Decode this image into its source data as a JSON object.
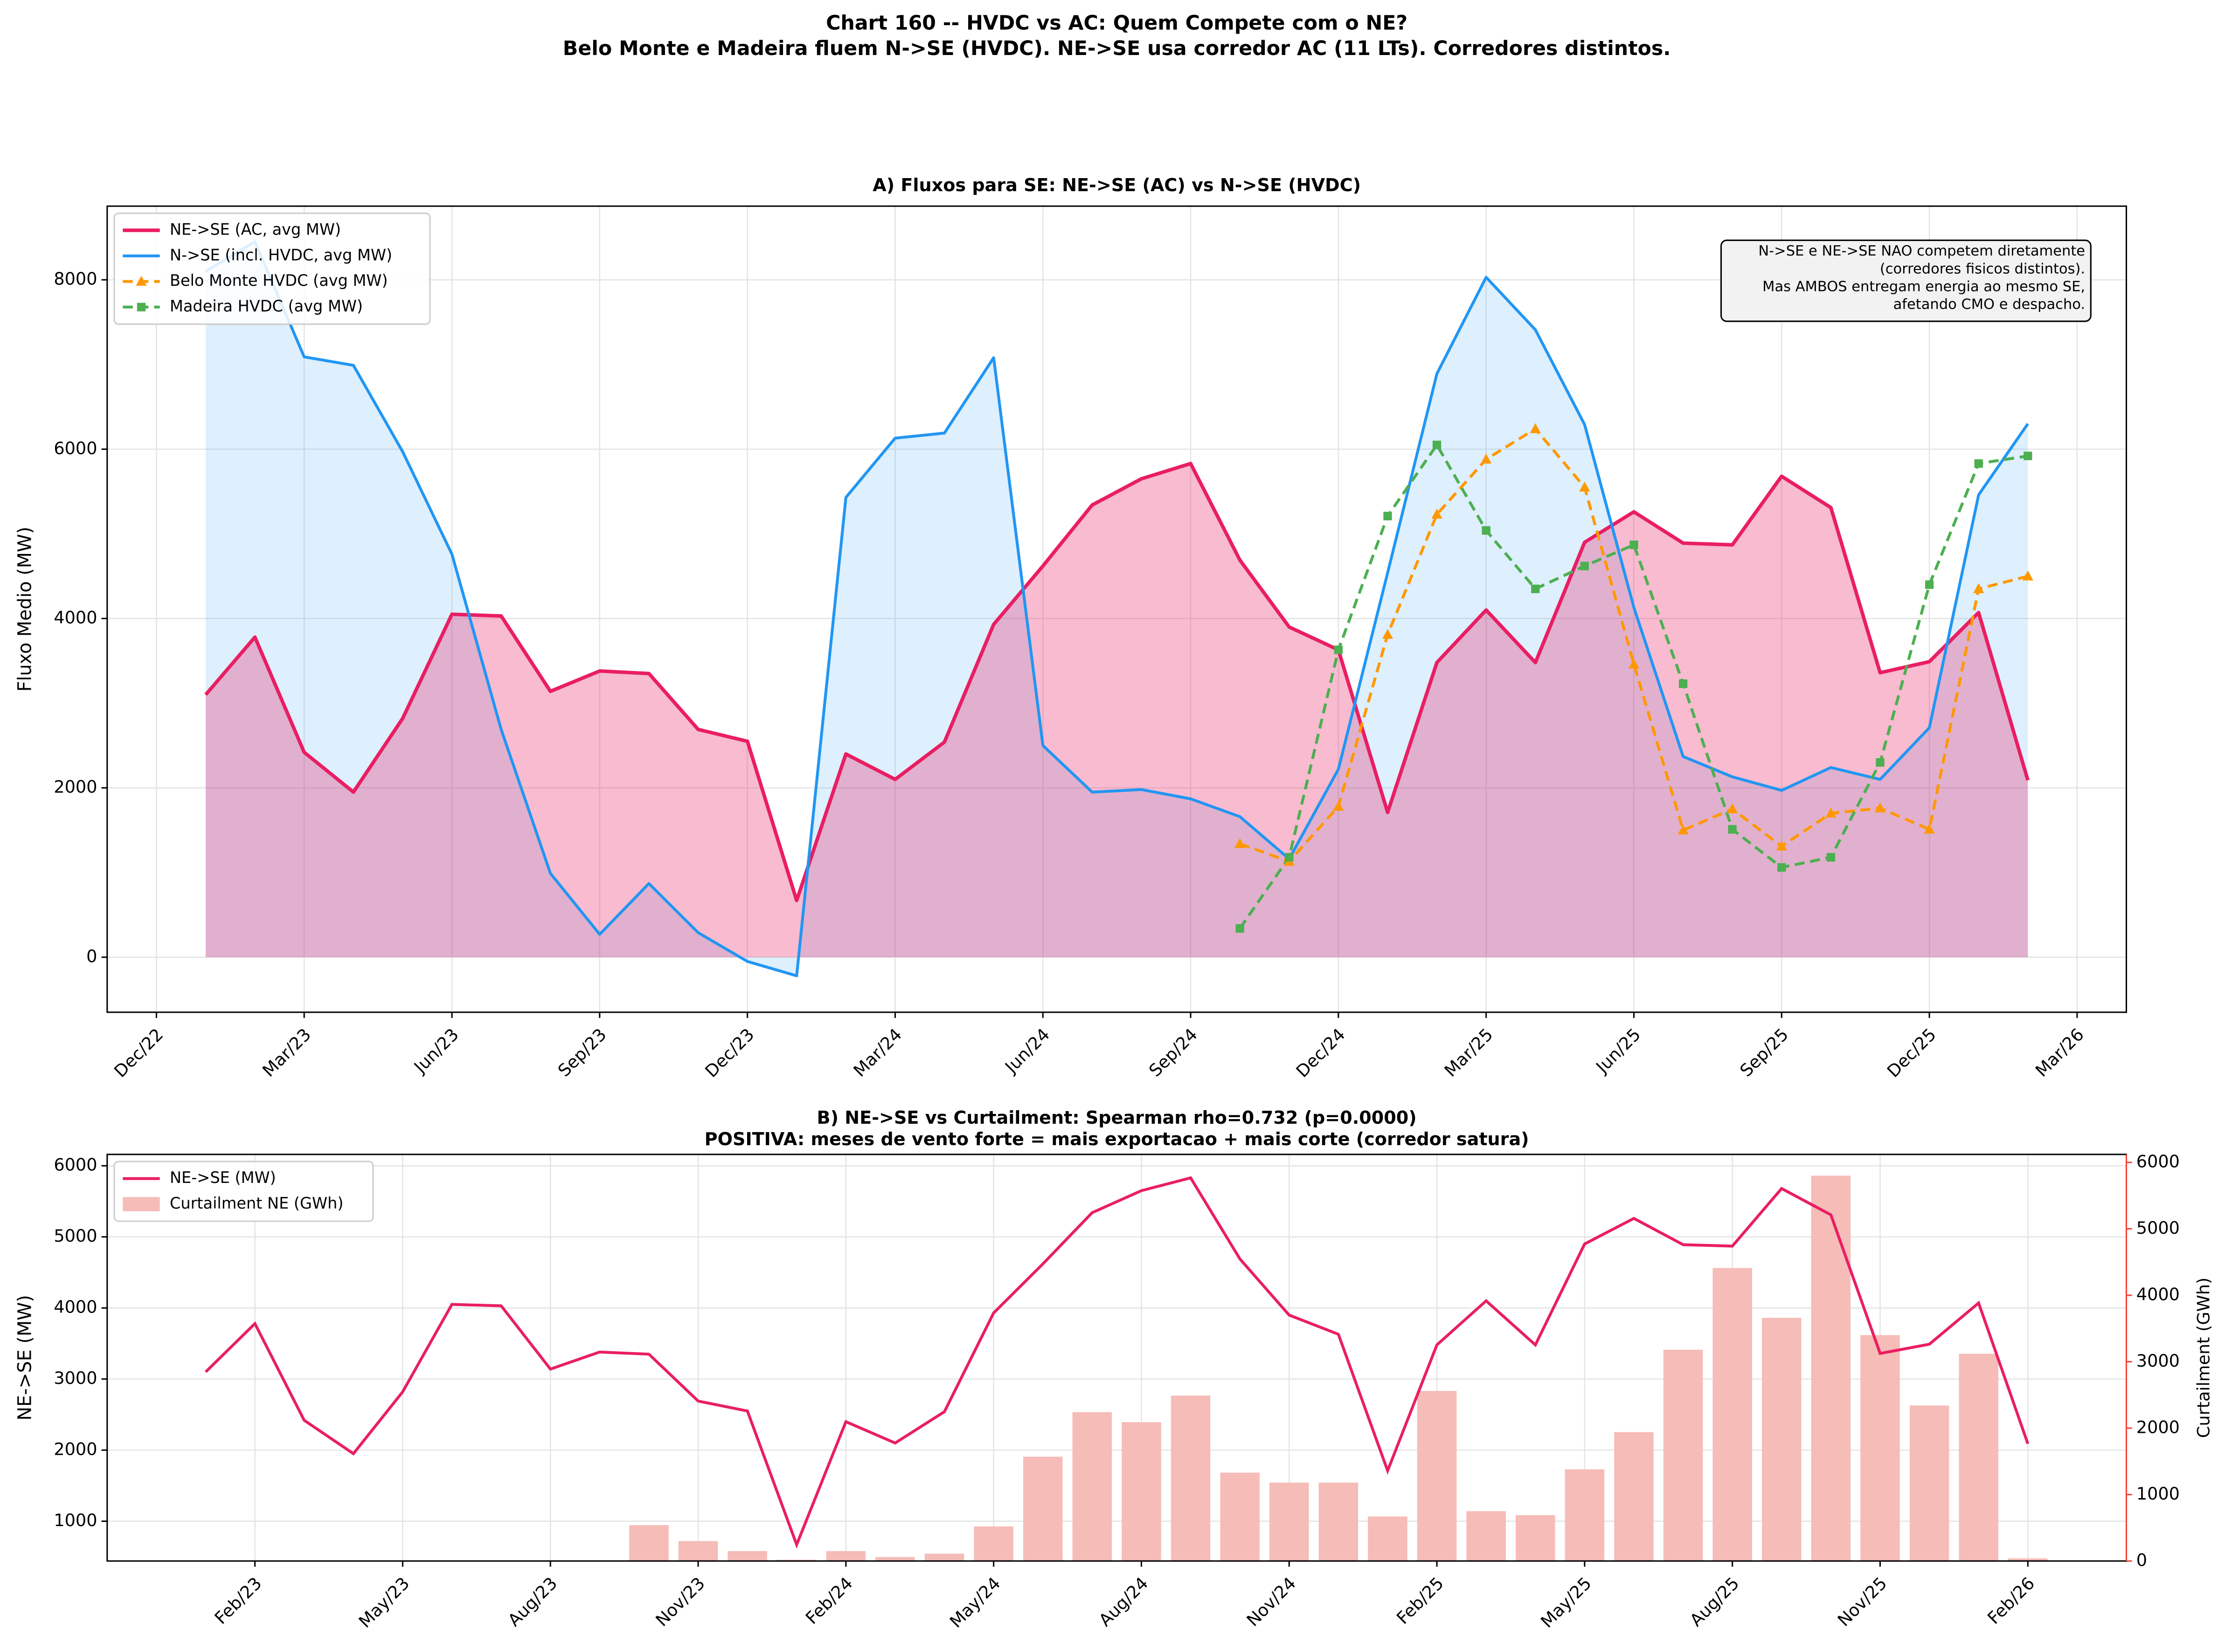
{
  "title": "Chart 160 -- HVDC vs AC: Quem Compete com o NE?",
  "subtitle": "Belo Monte e Madeira fluem N->SE (HVDC). NE->SE usa corredor AC (11 LTs). Corredores distintos.",
  "chart_data": [
    {
      "type": "line",
      "title": "A) Fluxos para SE: NE->SE (AC) vs N->SE (HVDC)",
      "ylabel": "Fluxo Medio (MW)",
      "x": [
        "2023-01",
        "2023-02",
        "2023-03",
        "2023-04",
        "2023-05",
        "2023-06",
        "2023-07",
        "2023-08",
        "2023-09",
        "2023-10",
        "2023-11",
        "2023-12",
        "2024-01",
        "2024-02",
        "2024-03",
        "2024-04",
        "2024-05",
        "2024-06",
        "2024-07",
        "2024-08",
        "2024-09",
        "2024-10",
        "2024-11",
        "2024-12",
        "2025-01",
        "2025-02",
        "2025-03",
        "2025-04",
        "2025-05",
        "2025-06",
        "2025-07",
        "2025-08",
        "2025-09",
        "2025-10",
        "2025-11",
        "2025-12",
        "2026-01",
        "2026-02"
      ],
      "series": [
        {
          "name": "NE->SE (AC, avg MW)",
          "color": "#e91e63",
          "fill": true,
          "linestyle": "-",
          "width": 2.5,
          "values": [
            3100,
            3780,
            2420,
            1950,
            2820,
            4050,
            4030,
            3140,
            3380,
            3350,
            2690,
            2550,
            670,
            2400,
            2100,
            2540,
            3930,
            4620,
            5340,
            5650,
            5830,
            4690,
            3900,
            3630,
            1710,
            3480,
            4100,
            3480,
            4900,
            5260,
            4890,
            4870,
            5680,
            5310,
            3360,
            3490,
            4070,
            2090
          ]
        },
        {
          "name": "N->SE (incl. HVDC, avg MW)",
          "color": "#2196f3",
          "fill": true,
          "linestyle": "-",
          "width": 2,
          "values": [
            8100,
            8450,
            7090,
            6990,
            5970,
            4760,
            2690,
            990,
            270,
            870,
            290,
            -50,
            -220,
            5430,
            6130,
            6190,
            7080,
            2500,
            1950,
            1980,
            1870,
            1660,
            1160,
            2220,
            4540,
            6890,
            8030,
            7410,
            6290,
            4130,
            2370,
            2130,
            1970,
            2240,
            2100,
            2710,
            5460,
            6300
          ]
        },
        {
          "name": "Belo Monte HVDC (avg MW)",
          "color": "#ff9800",
          "fill": false,
          "linestyle": "--",
          "marker": "^",
          "width": 2,
          "values": [
            null,
            null,
            null,
            null,
            null,
            null,
            null,
            null,
            null,
            null,
            null,
            null,
            null,
            null,
            null,
            null,
            null,
            null,
            null,
            null,
            null,
            1340,
            1130,
            1780,
            3810,
            5230,
            5880,
            6240,
            5550,
            3460,
            1500,
            1750,
            1310,
            1700,
            1760,
            1510,
            4350,
            4500
          ]
        },
        {
          "name": "Madeira HVDC (avg MW)",
          "color": "#4caf50",
          "fill": false,
          "linestyle": "--",
          "marker": "s",
          "width": 2,
          "values": [
            null,
            null,
            null,
            null,
            null,
            null,
            null,
            null,
            null,
            null,
            null,
            null,
            null,
            null,
            null,
            null,
            null,
            null,
            null,
            null,
            null,
            340,
            1180,
            3630,
            5210,
            6050,
            5040,
            4350,
            4620,
            4870,
            3230,
            1510,
            1060,
            1180,
            2300,
            4400,
            5830,
            5920
          ]
        }
      ],
      "xlim": [
        "2022-11",
        "2026-04"
      ],
      "xticks": [
        {
          "value": "2022-12",
          "label": "Dec/22"
        },
        {
          "value": "2023-03",
          "label": "Mar/23"
        },
        {
          "value": "2023-06",
          "label": "Jun/23"
        },
        {
          "value": "2023-09",
          "label": "Sep/23"
        },
        {
          "value": "2023-12",
          "label": "Dec/23"
        },
        {
          "value": "2024-03",
          "label": "Mar/24"
        },
        {
          "value": "2024-06",
          "label": "Jun/24"
        },
        {
          "value": "2024-09",
          "label": "Sep/24"
        },
        {
          "value": "2024-12",
          "label": "Dec/24"
        },
        {
          "value": "2025-03",
          "label": "Mar/25"
        },
        {
          "value": "2025-06",
          "label": "Jun/25"
        },
        {
          "value": "2025-09",
          "label": "Sep/25"
        },
        {
          "value": "2025-12",
          "label": "Dec/25"
        },
        {
          "value": "2026-03",
          "label": "Mar/26"
        }
      ],
      "ylim": [
        -650,
        8870
      ],
      "yticks": [
        0,
        2000,
        4000,
        6000,
        8000
      ],
      "grid": true,
      "legend": "upper-left",
      "annotation": [
        "N->SE e NE->SE NAO competem diretamente",
        "(corredores fisicos distintos).",
        "Mas AMBOS entregam energia ao mesmo SE,",
        "afetando CMO e despacho."
      ]
    },
    {
      "type": "combo",
      "title": "B) NE->SE vs Curtailment: Spearman rho=0.732 (p=0.0000)",
      "subtitle": "POSITIVA: meses de vento forte = mais exportacao + mais corte (corredor satura)",
      "ylabel": "NE->SE (MW)",
      "y2label": "Curtailment (GWh)",
      "y2color": "#f44336",
      "x": [
        "2023-01",
        "2023-02",
        "2023-03",
        "2023-04",
        "2023-05",
        "2023-06",
        "2023-07",
        "2023-08",
        "2023-09",
        "2023-10",
        "2023-11",
        "2023-12",
        "2024-01",
        "2024-02",
        "2024-03",
        "2024-04",
        "2024-05",
        "2024-06",
        "2024-07",
        "2024-08",
        "2024-09",
        "2024-10",
        "2024-11",
        "2024-12",
        "2025-01",
        "2025-02",
        "2025-03",
        "2025-04",
        "2025-05",
        "2025-06",
        "2025-07",
        "2025-08",
        "2025-09",
        "2025-10",
        "2025-11",
        "2025-12",
        "2026-01",
        "2026-02"
      ],
      "series": [
        {
          "name": "NE->SE (MW)",
          "color": "#e91e63",
          "kind": "line",
          "values": [
            3100,
            3780,
            2420,
            1950,
            2820,
            4050,
            4030,
            3140,
            3380,
            3350,
            2690,
            2550,
            670,
            2400,
            2100,
            2540,
            3930,
            4620,
            5340,
            5650,
            5830,
            4690,
            3900,
            3630,
            1710,
            3480,
            4100,
            3480,
            4900,
            5260,
            4890,
            4870,
            5680,
            5310,
            3360,
            3490,
            4070,
            2090
          ]
        },
        {
          "name": "Curtailment NE (GWh)",
          "color": "#f6bcb7",
          "kind": "bar",
          "axis": "y2",
          "values": [
            0,
            0,
            0,
            0,
            0,
            0,
            0,
            0,
            0,
            540,
            300,
            150,
            20,
            150,
            60,
            110,
            520,
            1570,
            2240,
            2090,
            2490,
            1330,
            1180,
            1180,
            670,
            2560,
            750,
            690,
            1380,
            1940,
            3180,
            4410,
            3660,
            5800,
            3400,
            2340,
            3120,
            40
          ]
        }
      ],
      "xlim": [
        "2022-11",
        "2026-04"
      ],
      "xticks": [
        {
          "value": "2023-02",
          "label": "Feb/23"
        },
        {
          "value": "2023-05",
          "label": "May/23"
        },
        {
          "value": "2023-08",
          "label": "Aug/23"
        },
        {
          "value": "2023-11",
          "label": "Nov/23"
        },
        {
          "value": "2024-02",
          "label": "Feb/24"
        },
        {
          "value": "2024-05",
          "label": "May/24"
        },
        {
          "value": "2024-08",
          "label": "Aug/24"
        },
        {
          "value": "2024-11",
          "label": "Nov/24"
        },
        {
          "value": "2025-02",
          "label": "Feb/25"
        },
        {
          "value": "2025-05",
          "label": "May/25"
        },
        {
          "value": "2025-08",
          "label": "Aug/25"
        },
        {
          "value": "2025-11",
          "label": "Nov/25"
        },
        {
          "value": "2026-02",
          "label": "Feb/26"
        }
      ],
      "ylim": [
        440,
        6160
      ],
      "yticks": [
        1000,
        2000,
        3000,
        4000,
        5000,
        6000
      ],
      "y2lim": [
        0,
        6120
      ],
      "y2ticks": [
        0,
        1000,
        2000,
        3000,
        4000,
        5000,
        6000
      ],
      "grid": true,
      "legend": "upper-left"
    }
  ]
}
